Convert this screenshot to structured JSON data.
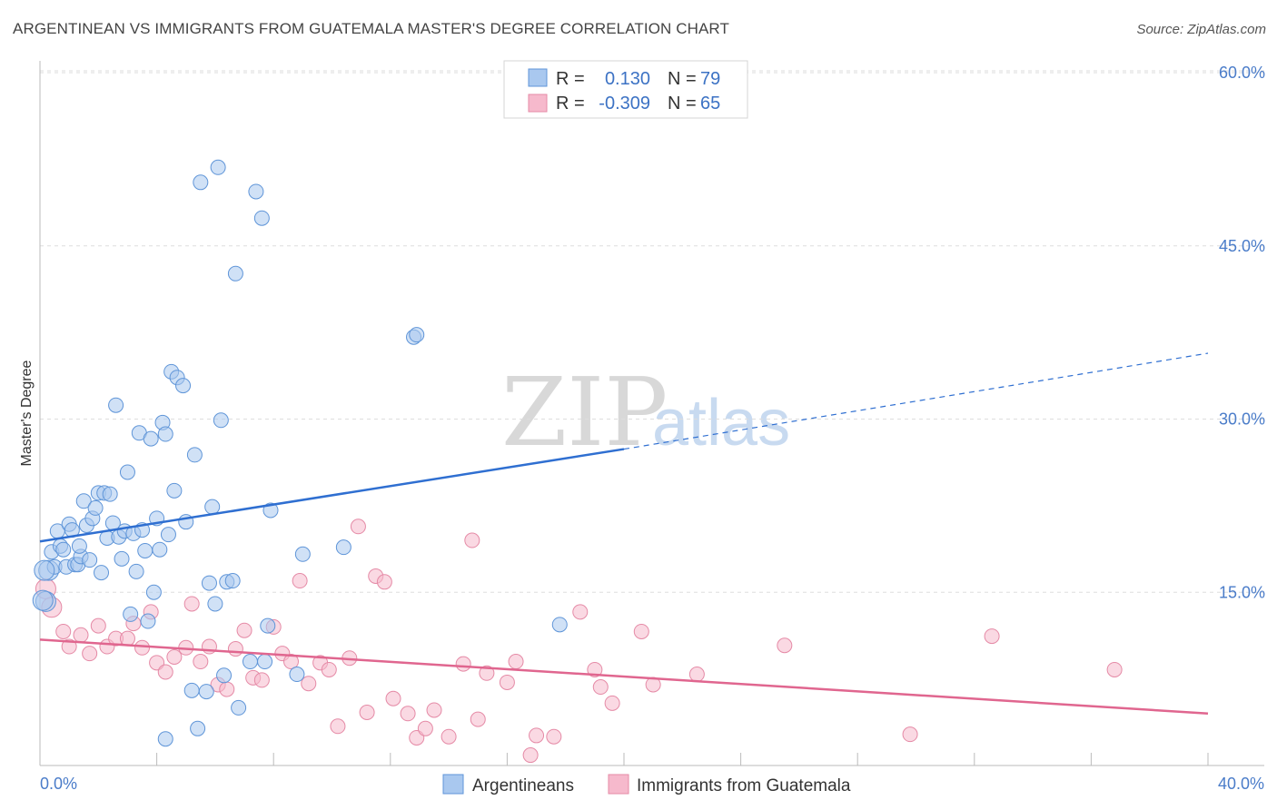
{
  "title": "ARGENTINEAN VS IMMIGRANTS FROM GUATEMALA MASTER'S DEGREE CORRELATION CHART",
  "source": "Source: ZipAtlas.com",
  "watermark": {
    "zip": "ZIP",
    "atlas": "atlas"
  },
  "colors": {
    "blue_fill": "#a9c8ef",
    "blue_stroke": "#5f95d8",
    "blue_line": "#2f6fd1",
    "pink_fill": "#f6b9cc",
    "pink_stroke": "#e58aa6",
    "pink_line": "#e0668f",
    "grid": "#dddddd",
    "tick_text": "#4a7cc9"
  },
  "legend_top": {
    "row1": {
      "r_label": "R =",
      "r_value": "0.130",
      "n_label": "N =",
      "n_value": "79"
    },
    "row2": {
      "r_label": "R =",
      "r_value": "-0.309",
      "n_label": "N =",
      "n_value": "65"
    }
  },
  "chart_data": {
    "type": "scatter",
    "title": "ARGENTINEAN VS IMMIGRANTS FROM GUATEMALA MASTER'S DEGREE CORRELATION CHART",
    "xlabel": "",
    "ylabel": "Master's Degree",
    "xlim": [
      0,
      40
    ],
    "ylim": [
      0,
      60
    ],
    "x_tick_labels": [
      "0.0%",
      "40.0%"
    ],
    "y_ticks": [
      15,
      30,
      45,
      60
    ],
    "y_tick_labels": [
      "15.0%",
      "30.0%",
      "45.0%",
      "60.0%"
    ],
    "legend_position": "bottom",
    "series": [
      {
        "name": "Argentineans",
        "color": "blue",
        "r": 0.13,
        "n": 79,
        "trend": {
          "x0": 0,
          "y0": 19.4,
          "x1": 20,
          "y1": 27.4,
          "dash_to_x": 40,
          "dash_to_y": 35.7
        },
        "points": [
          [
            0.2,
            14.2
          ],
          [
            0.3,
            16.9
          ],
          [
            0.4,
            18.5
          ],
          [
            0.5,
            17.2
          ],
          [
            0.6,
            20.3
          ],
          [
            0.7,
            19.0
          ],
          [
            0.8,
            18.7
          ],
          [
            0.9,
            17.2
          ],
          [
            1.0,
            20.9
          ],
          [
            1.1,
            20.4
          ],
          [
            1.2,
            17.4
          ],
          [
            1.3,
            17.4
          ],
          [
            1.4,
            18.1
          ],
          [
            1.5,
            22.9
          ],
          [
            1.6,
            20.8
          ],
          [
            1.7,
            17.8
          ],
          [
            1.8,
            21.4
          ],
          [
            1.9,
            22.3
          ],
          [
            2.0,
            23.6
          ],
          [
            2.1,
            16.7
          ],
          [
            2.2,
            23.6
          ],
          [
            2.3,
            19.7
          ],
          [
            2.4,
            23.5
          ],
          [
            2.5,
            21.0
          ],
          [
            2.6,
            31.2
          ],
          [
            2.7,
            19.8
          ],
          [
            2.8,
            17.9
          ],
          [
            2.9,
            20.3
          ],
          [
            3.0,
            25.4
          ],
          [
            3.1,
            13.1
          ],
          [
            3.2,
            20.1
          ],
          [
            3.3,
            16.8
          ],
          [
            3.4,
            28.8
          ],
          [
            3.5,
            20.4
          ],
          [
            3.6,
            18.6
          ],
          [
            3.7,
            12.5
          ],
          [
            3.8,
            28.3
          ],
          [
            3.9,
            15.0
          ],
          [
            4.0,
            21.4
          ],
          [
            4.1,
            18.7
          ],
          [
            4.2,
            29.7
          ],
          [
            4.3,
            28.7
          ],
          [
            4.4,
            20.0
          ],
          [
            4.5,
            34.1
          ],
          [
            4.6,
            23.8
          ],
          [
            4.7,
            33.6
          ],
          [
            4.9,
            32.9
          ],
          [
            5.0,
            21.1
          ],
          [
            5.3,
            26.9
          ],
          [
            5.5,
            50.5
          ],
          [
            5.8,
            15.8
          ],
          [
            5.9,
            22.4
          ],
          [
            6.0,
            14.0
          ],
          [
            6.1,
            51.8
          ],
          [
            6.2,
            29.9
          ],
          [
            6.4,
            15.9
          ],
          [
            6.7,
            42.6
          ],
          [
            7.4,
            49.7
          ],
          [
            7.6,
            47.4
          ],
          [
            7.9,
            22.1
          ],
          [
            7.8,
            12.1
          ],
          [
            5.7,
            6.4
          ],
          [
            5.4,
            3.2
          ],
          [
            5.2,
            6.5
          ],
          [
            4.3,
            2.3
          ],
          [
            6.3,
            7.8
          ],
          [
            6.8,
            5.0
          ],
          [
            7.2,
            9.0
          ],
          [
            7.7,
            9.0
          ],
          [
            9.0,
            18.3
          ],
          [
            8.8,
            7.9
          ],
          [
            10.4,
            18.9
          ],
          [
            12.8,
            37.1
          ],
          [
            12.9,
            37.3
          ],
          [
            17.8,
            12.2
          ],
          [
            0.1,
            14.3
          ],
          [
            0.15,
            16.9
          ],
          [
            1.35,
            19.0
          ],
          [
            6.6,
            16.0
          ]
        ]
      },
      {
        "name": "Immigrants from Guatemala",
        "color": "pink",
        "r": -0.309,
        "n": 65,
        "trend": {
          "x0": 0,
          "y0": 10.9,
          "x1": 40,
          "y1": 4.5
        },
        "points": [
          [
            0.2,
            15.3
          ],
          [
            0.4,
            13.7
          ],
          [
            0.8,
            11.6
          ],
          [
            1.0,
            10.3
          ],
          [
            1.4,
            11.3
          ],
          [
            1.7,
            9.7
          ],
          [
            2.0,
            12.1
          ],
          [
            2.3,
            10.3
          ],
          [
            2.6,
            11.0
          ],
          [
            3.0,
            11.0
          ],
          [
            3.2,
            12.3
          ],
          [
            3.5,
            10.2
          ],
          [
            3.8,
            13.3
          ],
          [
            4.0,
            8.9
          ],
          [
            4.3,
            8.1
          ],
          [
            4.6,
            9.4
          ],
          [
            5.0,
            10.2
          ],
          [
            5.2,
            14.0
          ],
          [
            5.5,
            9.0
          ],
          [
            5.8,
            10.3
          ],
          [
            6.1,
            7.0
          ],
          [
            6.4,
            6.6
          ],
          [
            6.7,
            10.1
          ],
          [
            7.0,
            11.7
          ],
          [
            7.3,
            7.6
          ],
          [
            7.6,
            7.4
          ],
          [
            8.0,
            12.0
          ],
          [
            8.3,
            9.7
          ],
          [
            8.6,
            9.0
          ],
          [
            8.9,
            16.0
          ],
          [
            9.2,
            7.1
          ],
          [
            9.6,
            8.9
          ],
          [
            9.9,
            8.3
          ],
          [
            10.2,
            3.4
          ],
          [
            10.6,
            9.3
          ],
          [
            10.9,
            20.7
          ],
          [
            11.2,
            4.6
          ],
          [
            11.5,
            16.4
          ],
          [
            11.8,
            15.9
          ],
          [
            12.1,
            5.8
          ],
          [
            12.6,
            4.5
          ],
          [
            12.9,
            2.4
          ],
          [
            13.2,
            3.2
          ],
          [
            13.5,
            4.8
          ],
          [
            14.0,
            2.5
          ],
          [
            14.5,
            8.8
          ],
          [
            14.8,
            19.5
          ],
          [
            15.0,
            4.0
          ],
          [
            15.3,
            8.0
          ],
          [
            16.0,
            7.2
          ],
          [
            16.3,
            9.0
          ],
          [
            16.8,
            0.9
          ],
          [
            17.0,
            2.6
          ],
          [
            17.6,
            2.5
          ],
          [
            18.5,
            13.3
          ],
          [
            19.0,
            8.3
          ],
          [
            19.2,
            6.8
          ],
          [
            19.6,
            5.4
          ],
          [
            20.6,
            11.6
          ],
          [
            21.0,
            7.0
          ],
          [
            22.5,
            7.9
          ],
          [
            25.5,
            10.4
          ],
          [
            29.8,
            2.7
          ],
          [
            32.6,
            11.2
          ],
          [
            36.8,
            8.3
          ]
        ]
      }
    ]
  },
  "bottom_legend": {
    "item1": "Argentineans",
    "item2": "Immigrants from Guatemala"
  }
}
